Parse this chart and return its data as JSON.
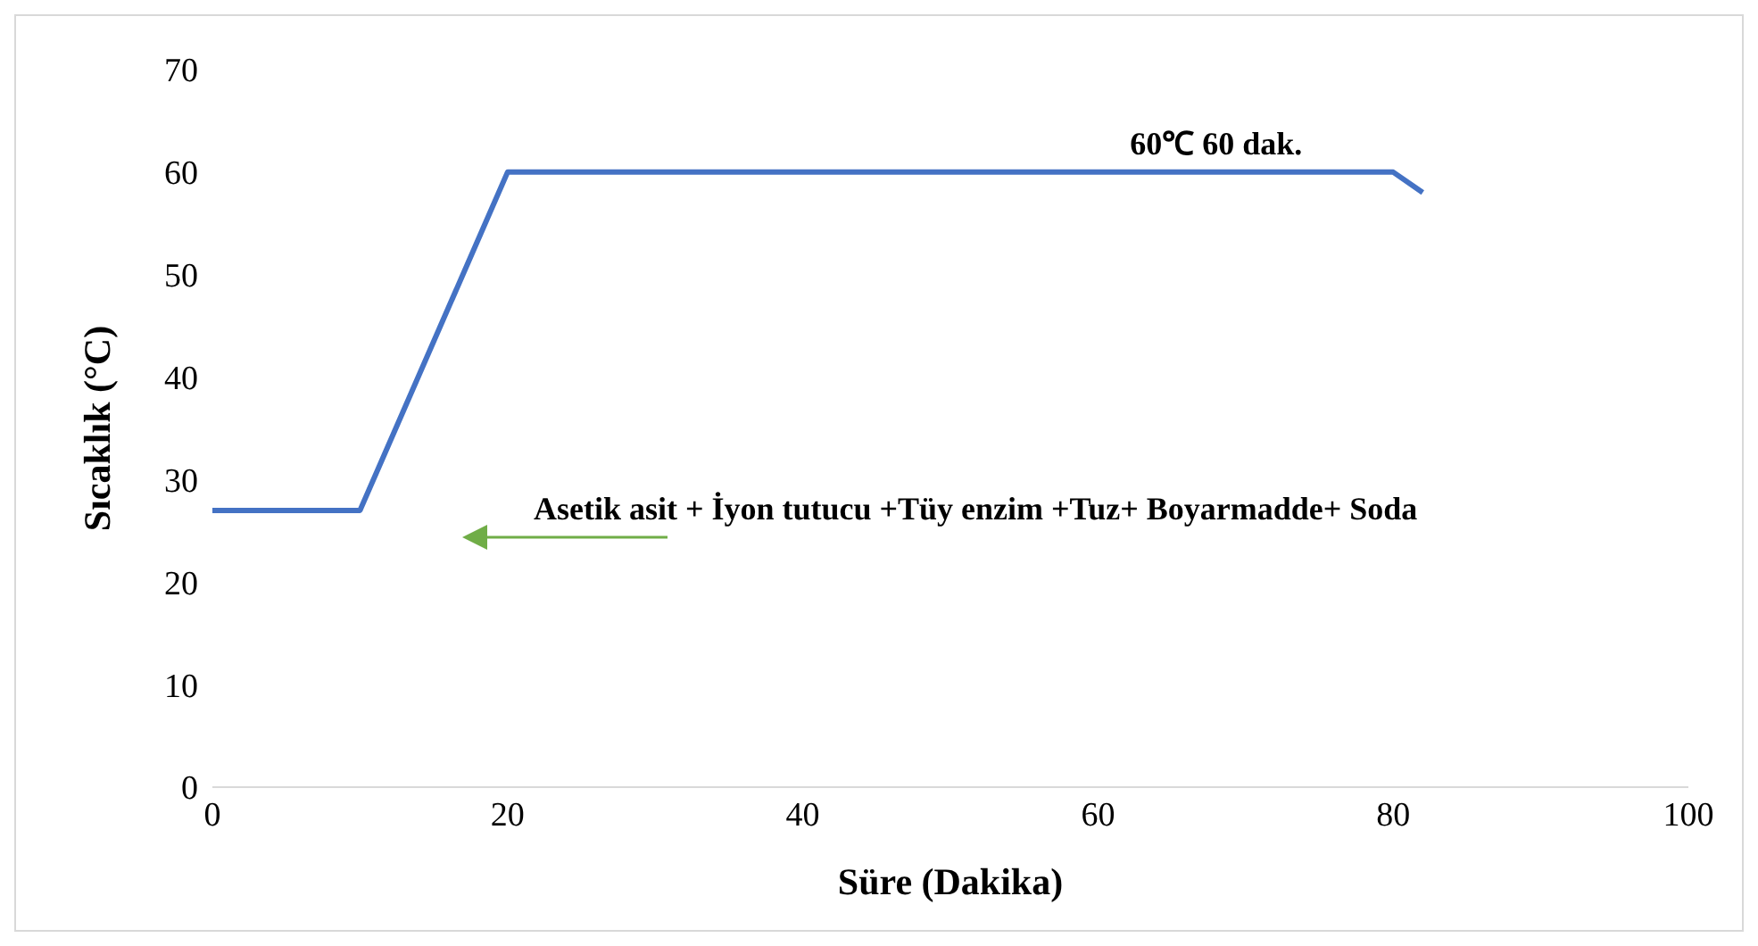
{
  "chart_data": {
    "type": "line",
    "xlabel": "Süre (Dakika)",
    "ylabel": "Sıcaklık (°C)",
    "x": [
      0,
      10,
      20,
      80,
      82
    ],
    "series": [
      {
        "color": "#4472c4",
        "values": [
          27,
          27,
          60,
          60,
          58
        ]
      }
    ],
    "xlim": [
      0,
      100
    ],
    "xticks": [
      0,
      20,
      40,
      60,
      80,
      100
    ],
    "ylim": [
      0,
      70
    ],
    "yticks": [
      0,
      10,
      20,
      30,
      40,
      50,
      60,
      70
    ],
    "grid": false,
    "legend": false,
    "marker": "none",
    "line_style": "solid",
    "annotations": [
      {
        "text": "60℃ 60 dak.",
        "x": 68,
        "y": 60
      },
      "Asetik asit + İyon tutucu +Tüy enzim +Tuz+ Boyarmadde+ Soda"
    ]
  }
}
